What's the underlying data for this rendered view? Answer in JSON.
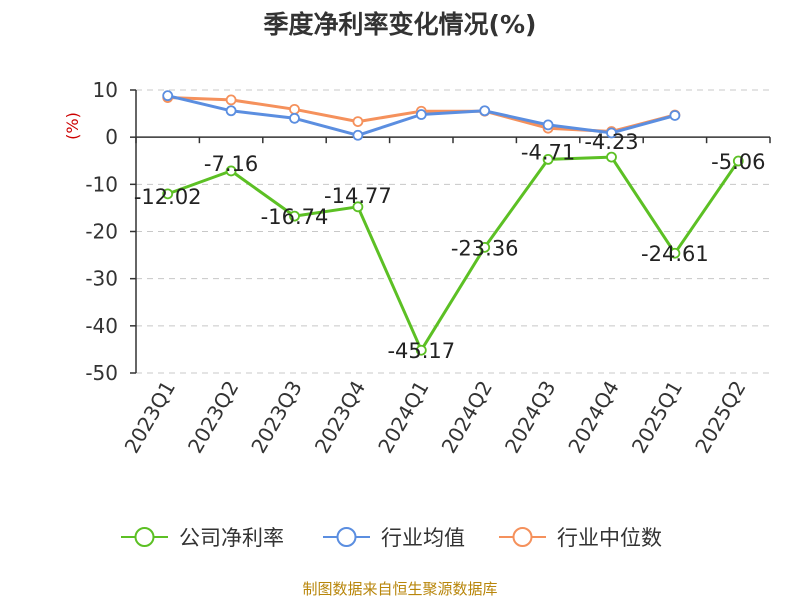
{
  "chart_data": {
    "type": "line",
    "title": "季度净利率变化情况(%)",
    "ylabel": "(%)",
    "xlabel": "",
    "categories": [
      "2023Q1",
      "2023Q2",
      "2023Q3",
      "2023Q4",
      "2024Q1",
      "2024Q2",
      "2024Q3",
      "2024Q4",
      "2025Q1",
      "2025Q2"
    ],
    "ylim": [
      -50,
      10
    ],
    "yticks": [
      10,
      0,
      -10,
      -20,
      -30,
      -40,
      -50
    ],
    "grid": true,
    "legend_position": "bottom",
    "series": [
      {
        "name": "公司净利率",
        "color": "#5cc024",
        "values": [
          -12.02,
          -7.16,
          -16.74,
          -14.77,
          -45.17,
          -23.36,
          -4.71,
          -4.23,
          -24.61,
          -5.06
        ],
        "labels": [
          "-12.02",
          "-7.16",
          "-16.74",
          "-14.77",
          "-45.17",
          "-23.36",
          "-4.71",
          "-4.23",
          "-24.61",
          "-5.06"
        ]
      },
      {
        "name": "行业均值",
        "color": "#5b8ee0",
        "values": [
          8.8,
          5.6,
          4.0,
          0.4,
          4.8,
          5.6,
          2.6,
          0.9,
          4.6,
          null
        ]
      },
      {
        "name": "行业中位数",
        "color": "#f5915c",
        "values": [
          8.4,
          7.9,
          5.9,
          3.3,
          5.5,
          5.5,
          1.9,
          1.2,
          4.7,
          null
        ]
      }
    ],
    "source": "制图数据来自恒生聚源数据库"
  }
}
